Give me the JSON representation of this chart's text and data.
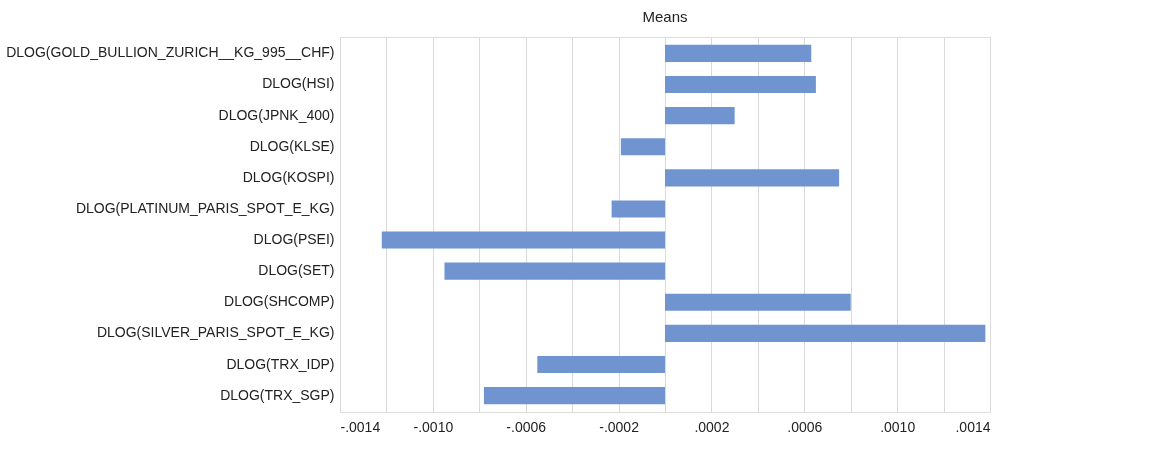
{
  "chart_data": {
    "type": "bar",
    "orientation": "horizontal",
    "title": "Means",
    "categories": [
      "DLOG(GOLD_BULLION_ZURICH__KG_995__CHF)",
      "DLOG(HSI)",
      "DLOG(JPNK_400)",
      "DLOG(KLSE)",
      "DLOG(KOSPI)",
      "DLOG(PLATINUM_PARIS_SPOT_E_KG)",
      "DLOG(PSEI)",
      "DLOG(SET)",
      "DLOG(SHCOMP)",
      "DLOG(SILVER_PARIS_SPOT_E_KG)",
      "DLOG(TRX_IDP)",
      "DLOG(TRX_SGP)"
    ],
    "values": [
      0.00063,
      0.00065,
      0.0003,
      -0.00019,
      0.00075,
      -0.00023,
      -0.00122,
      -0.00095,
      0.0008,
      0.00138,
      -0.00055,
      -0.00078
    ],
    "color": "#7094d0",
    "xlim": [
      -0.0014,
      0.0014
    ],
    "xticks": [
      {
        "value": -0.0014,
        "label": "-.0014"
      },
      {
        "value": -0.0012,
        "label": null
      },
      {
        "value": -0.001,
        "label": "-.0010"
      },
      {
        "value": -0.0008,
        "label": null
      },
      {
        "value": -0.0006,
        "label": "-.0006"
      },
      {
        "value": -0.0004,
        "label": null
      },
      {
        "value": -0.0002,
        "label": "-.0002"
      },
      {
        "value": 0,
        "label": null
      },
      {
        "value": 0.0002,
        "label": ".0002"
      },
      {
        "value": 0.0004,
        "label": null
      },
      {
        "value": 0.0006,
        "label": ".0006"
      },
      {
        "value": 0.0008,
        "label": null
      },
      {
        "value": 0.001,
        "label": ".0010"
      },
      {
        "value": 0.0012,
        "label": null
      },
      {
        "value": 0.0014,
        "label": ".0014"
      }
    ],
    "grid": "x"
  }
}
